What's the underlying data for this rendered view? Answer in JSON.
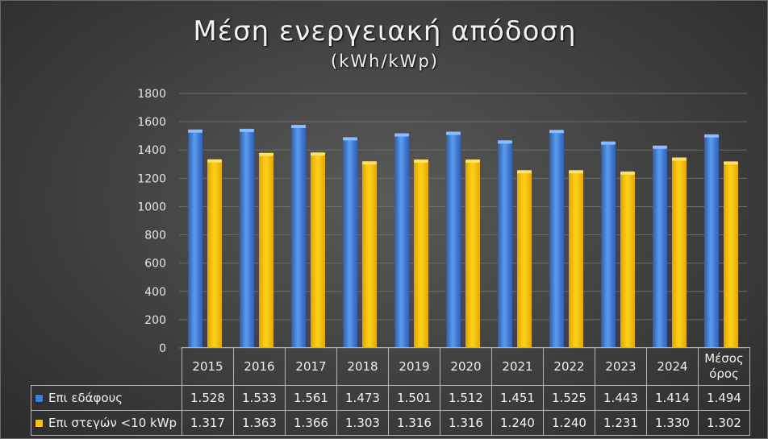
{
  "title": "Μέση ενεργειακή απόδοση",
  "subtitle": "(kWh/kWp)",
  "colors": {
    "ground": "#3f7fd6",
    "roof": "#ffc200"
  },
  "chart_data": {
    "type": "bar",
    "categories": [
      "2015",
      "2016",
      "2017",
      "2018",
      "2019",
      "2020",
      "2021",
      "2022",
      "2023",
      "2024",
      "Μέσος όρος"
    ],
    "series": [
      {
        "name": "Επι εδάφους",
        "values": [
          1528,
          1533,
          1561,
          1473,
          1501,
          1512,
          1451,
          1525,
          1443,
          1414,
          1494
        ]
      },
      {
        "name": "Επι στεγών <10 kWp",
        "values": [
          1317,
          1363,
          1366,
          1303,
          1316,
          1316,
          1240,
          1240,
          1231,
          1330,
          1302
        ]
      }
    ],
    "ylim": [
      0,
      1800
    ],
    "yticks": [
      "0",
      "200",
      "400",
      "600",
      "800",
      "1000",
      "1200",
      "1400",
      "1600",
      "1800"
    ],
    "grid": true,
    "legend": "data table",
    "table_rows": [
      {
        "label": "Επι εδάφους",
        "cells": [
          "1.528",
          "1.533",
          "1.561",
          "1.473",
          "1.501",
          "1.512",
          "1.451",
          "1.525",
          "1.443",
          "1.414",
          "1.494"
        ]
      },
      {
        "label": "Επι στεγών <10 kWp",
        "cells": [
          "1.317",
          "1.363",
          "1.366",
          "1.303",
          "1.316",
          "1.316",
          "1.240",
          "1.240",
          "1.231",
          "1.330",
          "1.302"
        ]
      }
    ]
  }
}
